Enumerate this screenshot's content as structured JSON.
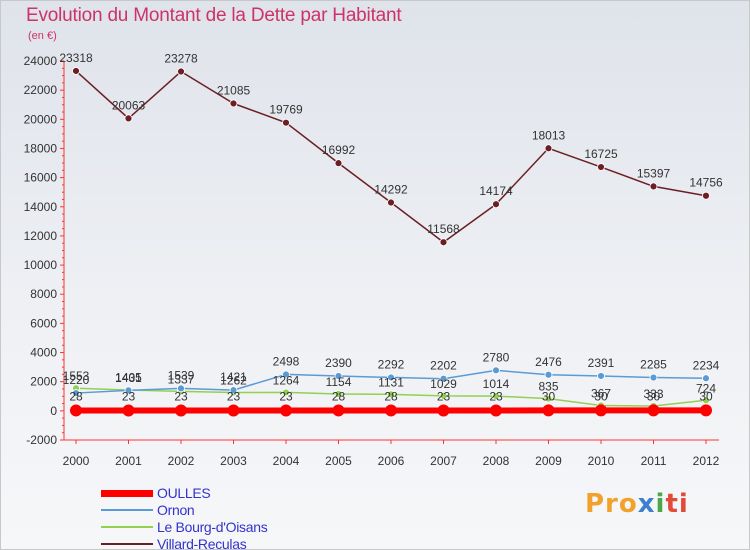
{
  "title": "Evolution du Montant de la Dette par Habitant",
  "unit_label": "(en €)",
  "logo": {
    "part1": "Pro",
    "part2": "x",
    "part3": "i",
    "part4": "ti"
  },
  "chart_data": {
    "type": "line",
    "categories": [
      "2000",
      "2001",
      "2002",
      "2003",
      "2004",
      "2005",
      "2006",
      "2007",
      "2008",
      "2009",
      "2010",
      "2011",
      "2012"
    ],
    "ylim": [
      -2000,
      24000
    ],
    "yticks": [
      -2000,
      0,
      2000,
      4000,
      6000,
      8000,
      10000,
      12000,
      14000,
      16000,
      18000,
      20000,
      22000,
      24000
    ],
    "grid": false,
    "legend_position": "bottom-left",
    "series": [
      {
        "name": "OULLES",
        "color": "#ff0000",
        "values": [
          28,
          23,
          23,
          23,
          23,
          28,
          28,
          23,
          23,
          30,
          30,
          30,
          30
        ],
        "labels": [
          "28",
          "23",
          "23",
          "23",
          "23",
          "28",
          "28",
          "23",
          "23",
          "30",
          "30",
          "30",
          "30"
        ]
      },
      {
        "name": "Ornon",
        "color": "#5b9bd5",
        "values": [
          1220,
          1405,
          1539,
          1421,
          2498,
          2390,
          2292,
          2202,
          2780,
          2476,
          2391,
          2285,
          2234
        ],
        "labels": [
          "1220",
          "1405",
          "1539",
          "1421",
          "2498",
          "2390",
          "2292",
          "2202",
          "2780",
          "2476",
          "2391",
          "2285",
          "2234"
        ]
      },
      {
        "name": "Le Bourg-d'Oisans",
        "color": "#92d050",
        "values": [
          1553,
          1431,
          1337,
          1262,
          1264,
          1154,
          1131,
          1029,
          1014,
          835,
          367,
          333,
          724
        ],
        "labels": [
          "1553",
          "1431",
          "1337",
          "1262",
          "1264",
          "1154",
          "1131",
          "1029",
          "1014",
          "835",
          "367",
          "333",
          "724"
        ]
      },
      {
        "name": "Villard-Reculas",
        "color": "#6b1f24",
        "values": [
          23318,
          20063,
          23278,
          21085,
          19769,
          16992,
          14292,
          11568,
          14174,
          18013,
          16725,
          15397,
          14756
        ],
        "labels": [
          "23318",
          "20063",
          "23278",
          "21085",
          "19769",
          "16992",
          "14292",
          "11568",
          "14174",
          "18013",
          "16725",
          "15397",
          "14756"
        ]
      }
    ]
  }
}
